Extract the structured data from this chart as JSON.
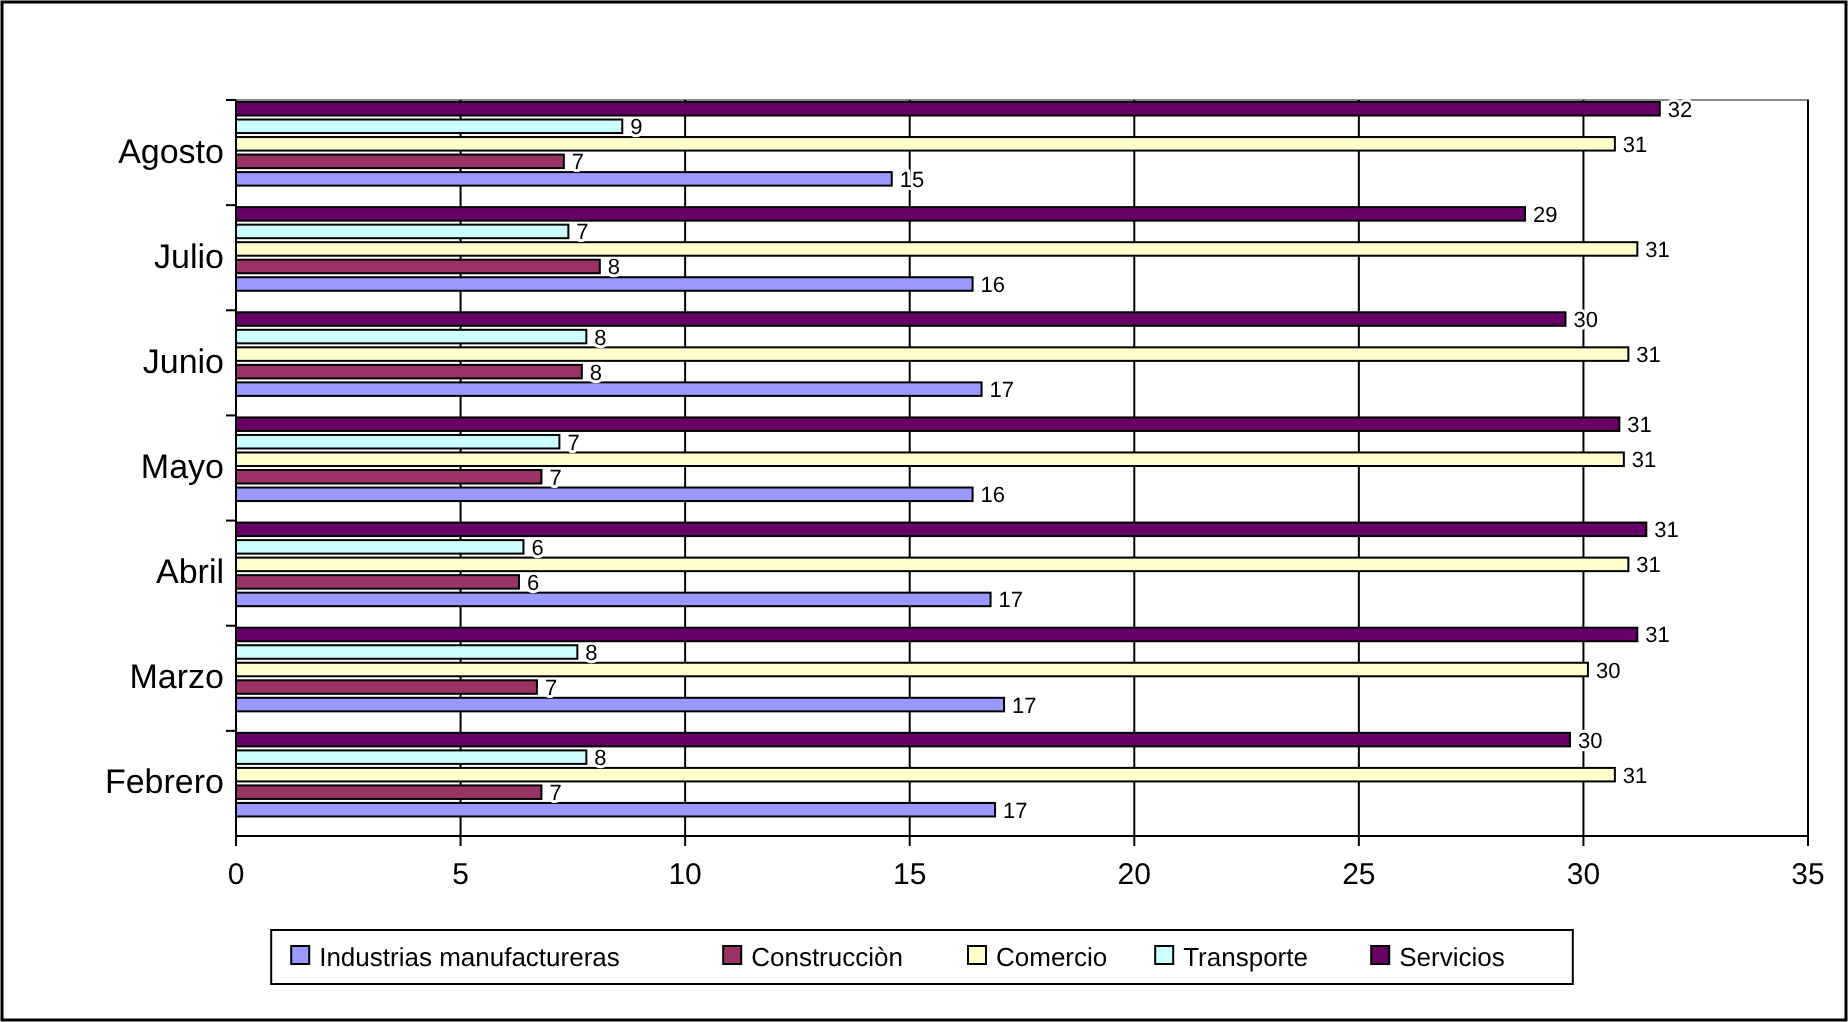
{
  "chart_data": {
    "type": "bar",
    "orientation": "horizontal",
    "categories": [
      "Agosto",
      "Julio",
      "Junio",
      "Mayo",
      "Abril",
      "Marzo",
      "Febrero"
    ],
    "series": [
      {
        "name": "Industrias manufactureras",
        "color": "#9999ff",
        "values": [
          14.6,
          16.4,
          16.6,
          16.4,
          16.8,
          17.1,
          16.9
        ],
        "value_labels": [
          "15",
          "16",
          "17",
          "16",
          "17",
          "17",
          "17"
        ]
      },
      {
        "name": "Construcciòn",
        "color": "#993366",
        "values": [
          7.3,
          8.1,
          7.7,
          6.8,
          6.3,
          6.7,
          6.8
        ],
        "value_labels": [
          "7",
          "8",
          "8",
          "7",
          "6",
          "7",
          "7"
        ]
      },
      {
        "name": "Comercio",
        "color": "#ffffcc",
        "values": [
          30.7,
          31.2,
          31.0,
          30.9,
          31.0,
          30.1,
          30.7
        ],
        "value_labels": [
          "31",
          "31",
          "31",
          "31",
          "31",
          "30",
          "31"
        ]
      },
      {
        "name": "Transporte",
        "color": "#ccffff",
        "values": [
          8.6,
          7.4,
          7.8,
          7.2,
          6.4,
          7.6,
          7.8
        ],
        "value_labels": [
          "9",
          "7",
          "8",
          "7",
          "6",
          "8",
          "8"
        ]
      },
      {
        "name": "Servicios",
        "color": "#660066",
        "values": [
          31.7,
          28.7,
          29.6,
          30.8,
          31.4,
          31.2,
          29.7
        ],
        "value_labels": [
          "32",
          "29",
          "30",
          "31",
          "31",
          "31",
          "30"
        ]
      }
    ],
    "xlim": [
      0,
      35
    ],
    "xticks": [
      0,
      5,
      10,
      15,
      20,
      25,
      30,
      35
    ],
    "grid": "x",
    "legend": "bottom"
  }
}
